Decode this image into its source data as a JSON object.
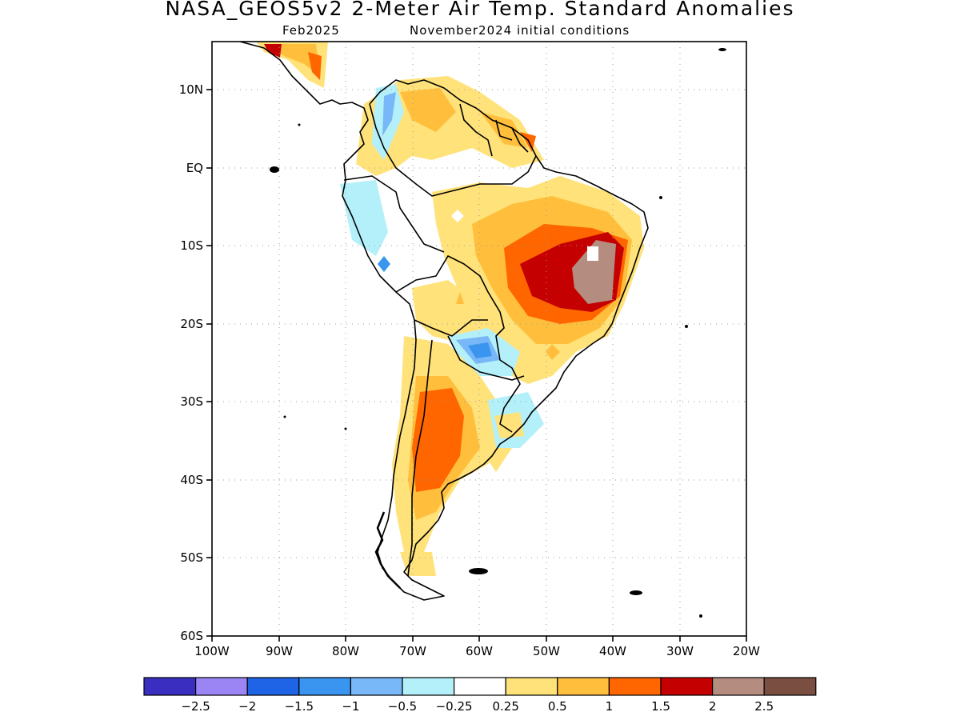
{
  "title": "NASA_GEOS5v2 2-Meter Air Temp. Standard Anomalies",
  "subtitle_left": "Feb2025",
  "subtitle_right": "November2024 initial conditions",
  "map": {
    "region": "South America",
    "lat_range": [
      -60,
      15
    ],
    "lon_range": [
      -100,
      -20
    ],
    "lat_ticks": [
      "10N",
      "EQ",
      "10S",
      "20S",
      "30S",
      "40S",
      "50S",
      "60S"
    ],
    "lon_ticks": [
      "100W",
      "90W",
      "80W",
      "70W",
      "60W",
      "50W",
      "40W",
      "30W",
      "20W"
    ],
    "grid": "dotted"
  },
  "colorbar": {
    "colors": [
      "#3a2ec0",
      "#9b85f5",
      "#1f63e6",
      "#3a95f0",
      "#78b7f8",
      "#b4f0fa",
      "#ffffff",
      "#ffe27a",
      "#ffbf3c",
      "#ff6600",
      "#c50000",
      "#b58c80",
      "#7a4e41"
    ],
    "labels": [
      "-2.5",
      "-2",
      "-1.5",
      "-1",
      "-0.5",
      "-0.25",
      "0.25",
      "0.5",
      "1",
      "1.5",
      "2",
      "2.5"
    ]
  }
}
